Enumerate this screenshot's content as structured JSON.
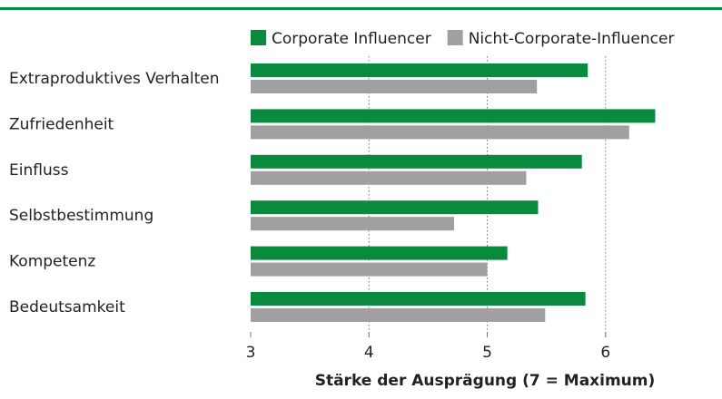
{
  "chart_data": {
    "type": "hbar",
    "xlabel": "Stärke der Ausprägung (7 = Maximum)",
    "categories": [
      "Extraproduktives Verhalten",
      "Zufriedenheit",
      "Einfluss",
      "Selbstbestimmung",
      "Kompetenz",
      "Bedeutsamkeit"
    ],
    "series": [
      {
        "name": "Corporate Influencer",
        "color": "#0a8a3c",
        "values": [
          5.85,
          6.42,
          5.8,
          5.43,
          5.17,
          5.83
        ]
      },
      {
        "name": "Nicht-Corporate-Influencer",
        "color": "#a0a0a0",
        "values": [
          5.42,
          6.2,
          5.33,
          4.72,
          5.0,
          5.49
        ]
      }
    ],
    "xlim": [
      3,
      7
    ],
    "xticks": [
      3,
      4,
      5,
      6
    ],
    "grid": true
  }
}
